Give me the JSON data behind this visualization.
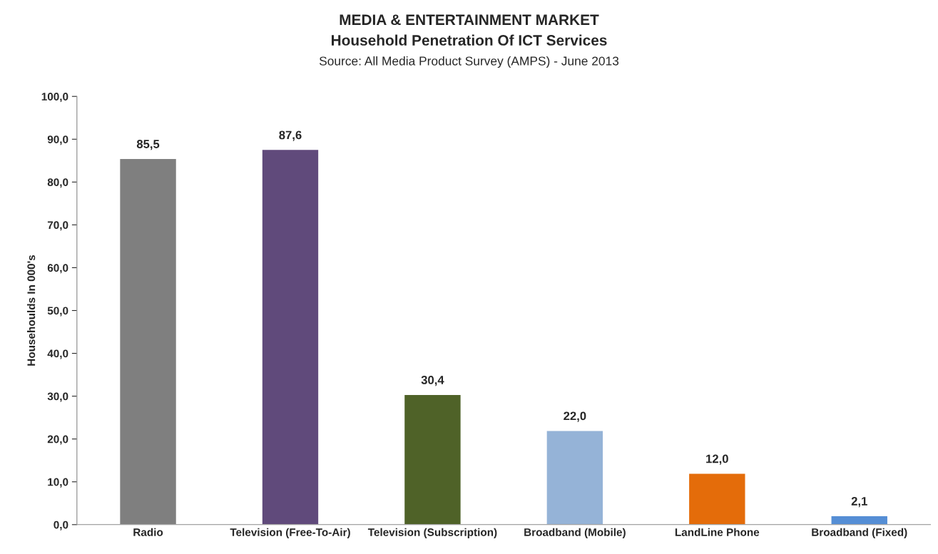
{
  "chart_data": {
    "type": "bar",
    "title": "MEDIA & ENTERTAINMENT MARKET",
    "subtitle": "Household Penetration Of ICT Services",
    "annotations": [
      "Source: All Media Product Survey (AMPS) - June 2013"
    ],
    "ylabel": "Househoulds In 000's",
    "categories": [
      "Radio",
      "Television (Free-To-Air)",
      "Television (Subscription)",
      "Broadband (Mobile)",
      "LandLine Phone",
      "Broadband (Fixed)"
    ],
    "values": [
      85.5,
      87.6,
      30.4,
      22.0,
      12.0,
      2.1
    ],
    "value_labels": [
      "85,5",
      "87,6",
      "30,4",
      "22,0",
      "12,0",
      "2,1"
    ],
    "colors": [
      "#7f7f7f",
      "#604a7b",
      "#4f6228",
      "#95b3d7",
      "#e46c0a",
      "#558ed5"
    ],
    "ylim": [
      0,
      100
    ],
    "yticks": [
      {
        "value": 0,
        "label": "0,0"
      },
      {
        "value": 10,
        "label": "10,0"
      },
      {
        "value": 20,
        "label": "20,0"
      },
      {
        "value": 30,
        "label": "30,0"
      },
      {
        "value": 40,
        "label": "40,0"
      },
      {
        "value": 50,
        "label": "50,0"
      },
      {
        "value": 60,
        "label": "60,0"
      },
      {
        "value": 70,
        "label": "70,0"
      },
      {
        "value": 80,
        "label": "80,0"
      },
      {
        "value": 90,
        "label": "90,0"
      },
      {
        "value": 100,
        "label": "100,0"
      }
    ],
    "grid": false,
    "legend": false
  }
}
